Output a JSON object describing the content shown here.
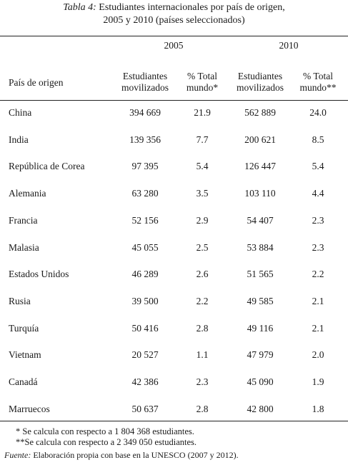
{
  "title": {
    "label": "Tabla 4:",
    "lines": [
      "Estudiantes internacionales por país de origen,",
      "2005 y 2010 (países seleccionados)"
    ]
  },
  "table": {
    "years": [
      "2005",
      "2010"
    ],
    "header": [
      "País de origen",
      "Estudiantes movilizados",
      "% Total mundo*",
      "Estudiantes movilizados",
      "% Total mundo**"
    ],
    "rows": [
      [
        "China",
        "394 669",
        "21.9",
        "562 889",
        "24.0"
      ],
      [
        "India",
        "139 356",
        "7.7",
        "200 621",
        "8.5"
      ],
      [
        "República de Corea",
        "97 395",
        "5.4",
        "126 447",
        "5.4"
      ],
      [
        "Alemania",
        "63 280",
        "3.5",
        "103 110",
        "4.4"
      ],
      [
        "Francia",
        "52 156",
        "2.9",
        "54 407",
        "2.3"
      ],
      [
        "Malasia",
        "45 055",
        "2.5",
        "53 884",
        "2.3"
      ],
      [
        "Estados Unidos",
        "46 289",
        "2.6",
        "51 565",
        "2.2"
      ],
      [
        "Rusia",
        "39 500",
        "2.2",
        "49 585",
        "2.1"
      ],
      [
        "Turquía",
        "50 416",
        "2.8",
        "49 116",
        "2.1"
      ],
      [
        "Vietnam",
        "20 527",
        "1.1",
        "47 979",
        "2.0"
      ],
      [
        "Canadá",
        "42 386",
        "2.3",
        "45 090",
        "1.9"
      ],
      [
        "Marruecos",
        "50 637",
        "2.8",
        "42 800",
        "1.8"
      ]
    ]
  },
  "footnotes": [
    "* Se calcula con respecto a 1 804 368 estudiantes.",
    "**Se calcula con respecto a 2 349 050 estudiantes."
  ],
  "source": {
    "label": "Fuente:",
    "text": "Elaboración propia con base en la UNESCO (2007 y 2012)."
  }
}
